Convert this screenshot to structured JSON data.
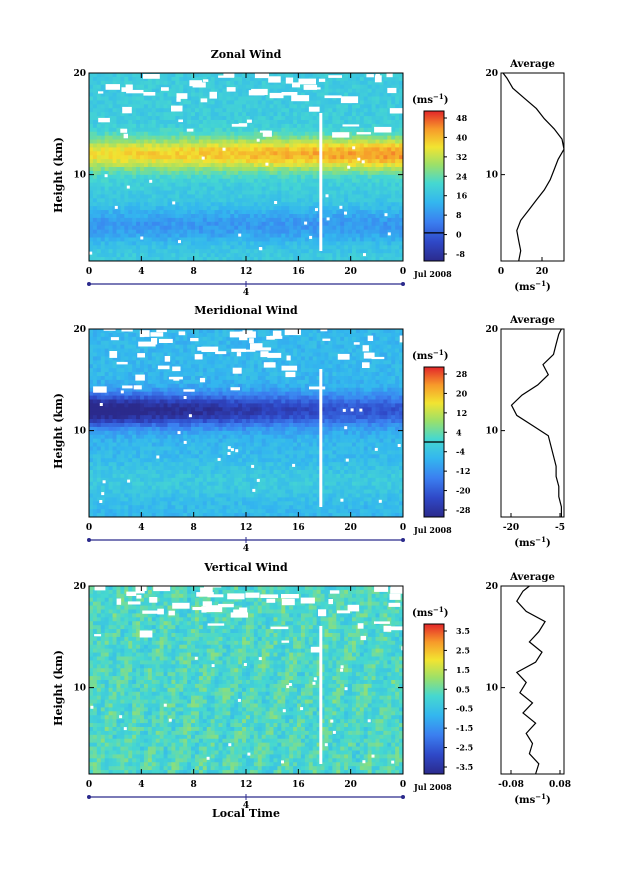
{
  "chart_data": [
    {
      "type": "heatmap",
      "title": "Zonal Wind",
      "ylabel": "Height (km)",
      "xlabel": "",
      "x_ticks": [
        "0",
        "4",
        "8",
        "12",
        "16",
        "20",
        "0"
      ],
      "y_ticks": [
        "10",
        "20"
      ],
      "xlim_hours": [
        0,
        24
      ],
      "ylim_km": [
        1.5,
        20
      ],
      "date_tick": "4",
      "date_label": "Jul 2008",
      "colorbar": {
        "unit_base": "(ms",
        "unit_exp": "−1",
        "unit_close": ")",
        "labels": [
          "48",
          "40",
          "32",
          "24",
          "16",
          "8",
          "0",
          "-8"
        ],
        "range": [
          -12,
          52
        ],
        "contour_at": 0
      },
      "features": {
        "jet_height_km": 12,
        "jet_peak_ms": 45,
        "low_height_km": 5,
        "low_ms": 2
      },
      "profile": {
        "title": "Average",
        "x_ticks": [
          "0",
          "20"
        ],
        "xlim": [
          0,
          32
        ],
        "y_ticks": [
          "10",
          "20"
        ],
        "unit_base": "(ms",
        "unit_exp": "−1",
        "unit_close": ")",
        "points": [
          [
            9,
            1.5
          ],
          [
            10,
            2.5
          ],
          [
            9,
            3.5
          ],
          [
            8,
            4.5
          ],
          [
            10,
            5.5
          ],
          [
            14,
            6.5
          ],
          [
            18,
            7.5
          ],
          [
            22,
            8.5
          ],
          [
            25,
            9.5
          ],
          [
            27,
            10.5
          ],
          [
            29,
            11.5
          ],
          [
            32,
            12.5
          ],
          [
            31,
            13.5
          ],
          [
            27,
            14.5
          ],
          [
            22,
            15.5
          ],
          [
            18,
            16.5
          ],
          [
            12,
            17.5
          ],
          [
            6,
            18.5
          ],
          [
            3,
            19.5
          ],
          [
            1,
            20
          ]
        ]
      }
    },
    {
      "type": "heatmap",
      "title": "Meridional Wind",
      "ylabel": "Height (km)",
      "xlabel": "",
      "x_ticks": [
        "0",
        "4",
        "8",
        "12",
        "16",
        "20",
        "0"
      ],
      "y_ticks": [
        "10",
        "20"
      ],
      "xlim_hours": [
        0,
        24
      ],
      "ylim_km": [
        1.5,
        20
      ],
      "date_tick": "4",
      "date_label": "Jul 2008",
      "colorbar": {
        "unit_base": "(ms",
        "unit_exp": "−1",
        "unit_close": ")",
        "labels": [
          "28",
          "20",
          "12",
          "4",
          "-4",
          "-12",
          "-20",
          "-28"
        ],
        "range": [
          -30,
          30
        ],
        "contour_at": 0
      },
      "features": {
        "jet_height_km": 12,
        "jet_peak_ms": -30,
        "low_height_km": 5,
        "low_ms": 0
      },
      "profile": {
        "title": "Average",
        "x_ticks": [
          "-20",
          "-5"
        ],
        "xlim": [
          -24,
          0
        ],
        "y_ticks": [
          "10",
          "20"
        ],
        "unit_base": "(ms",
        "unit_exp": "−1",
        "unit_close": ")",
        "points": [
          [
            -1,
            1.5
          ],
          [
            -1,
            2.5
          ],
          [
            -2,
            3.5
          ],
          [
            -2,
            4.5
          ],
          [
            -3,
            5.5
          ],
          [
            -3,
            6.5
          ],
          [
            -4,
            7.5
          ],
          [
            -5,
            8.5
          ],
          [
            -6,
            9.5
          ],
          [
            -12,
            10.5
          ],
          [
            -18,
            11.5
          ],
          [
            -20,
            12.5
          ],
          [
            -16,
            13.5
          ],
          [
            -10,
            14.5
          ],
          [
            -6,
            15.5
          ],
          [
            -8,
            16.5
          ],
          [
            -4,
            17.5
          ],
          [
            -3,
            18.5
          ],
          [
            -2,
            19.5
          ],
          [
            -1,
            20
          ]
        ]
      }
    },
    {
      "type": "heatmap",
      "title": "Vertical Wind",
      "ylabel": "Height (km)",
      "xlabel": "Local Time",
      "x_ticks": [
        "0",
        "4",
        "8",
        "12",
        "16",
        "20",
        "0"
      ],
      "y_ticks": [
        "10",
        "20"
      ],
      "xlim_hours": [
        0,
        24
      ],
      "ylim_km": [
        1.5,
        20
      ],
      "date_tick": "4",
      "date_label": "Jul 2008",
      "colorbar": {
        "unit_base": "(ms",
        "unit_exp": "−1",
        "unit_close": ")",
        "labels": [
          "3.5",
          "2.5",
          "1.5",
          "0.5",
          "-0.5",
          "-1.5",
          "-2.5",
          "-3.5"
        ],
        "range": [
          -4,
          4
        ],
        "contour_at": null
      },
      "features": {
        "jet_height_km": 12,
        "jet_peak_ms": 0.3,
        "low_height_km": 5,
        "low_ms": 0
      },
      "profile": {
        "title": "Average",
        "x_ticks": [
          "-0.08",
          "0.08"
        ],
        "xlim": [
          -0.1,
          0.1
        ],
        "y_ticks": [
          "10",
          "20"
        ],
        "unit_base": "(ms",
        "unit_exp": "−1",
        "unit_close": ")",
        "points": [
          [
            0.01,
            1.5
          ],
          [
            0.02,
            2.5
          ],
          [
            -0.01,
            3.5
          ],
          [
            0.0,
            4.5
          ],
          [
            -0.02,
            5.5
          ],
          [
            0.01,
            6.5
          ],
          [
            -0.03,
            7.5
          ],
          [
            0.0,
            8.5
          ],
          [
            -0.04,
            9.5
          ],
          [
            -0.02,
            10.5
          ],
          [
            -0.05,
            11.5
          ],
          [
            0.01,
            12.5
          ],
          [
            0.03,
            13.5
          ],
          [
            -0.01,
            14.5
          ],
          [
            0.02,
            15.5
          ],
          [
            0.04,
            16.5
          ],
          [
            -0.02,
            17.5
          ],
          [
            -0.05,
            18.5
          ],
          [
            -0.03,
            19.5
          ],
          [
            -0.01,
            20
          ]
        ]
      }
    }
  ]
}
